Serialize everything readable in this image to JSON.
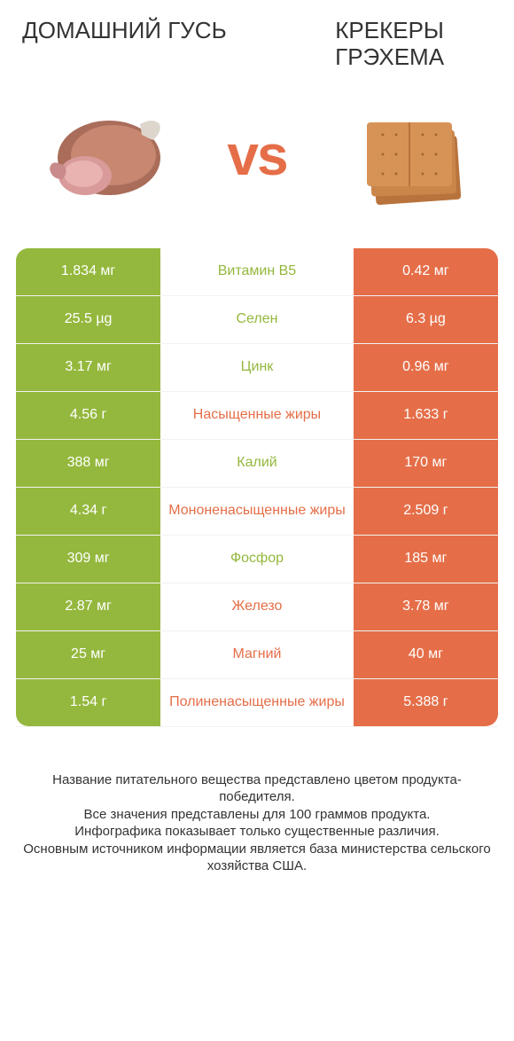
{
  "header": {
    "left_title": "ДОМАШНИЙ ГУСЬ",
    "right_title": "КРЕКЕРЫ ГРЭХЕМА",
    "vs": "vs"
  },
  "colors": {
    "green": "#94b83d",
    "orange": "#e56e48",
    "white": "#ffffff",
    "text": "#333333"
  },
  "rows": [
    {
      "nutrient": "Витамин B5",
      "left": "1.834 мг",
      "right": "0.42 мг",
      "winner": "left"
    },
    {
      "nutrient": "Селен",
      "left": "25.5 µg",
      "right": "6.3 µg",
      "winner": "left"
    },
    {
      "nutrient": "Цинк",
      "left": "3.17 мг",
      "right": "0.96 мг",
      "winner": "left"
    },
    {
      "nutrient": "Насыщенные жиры",
      "left": "4.56 г",
      "right": "1.633 г",
      "winner": "right"
    },
    {
      "nutrient": "Калий",
      "left": "388 мг",
      "right": "170 мг",
      "winner": "left"
    },
    {
      "nutrient": "Мононенасыщенные жиры",
      "left": "4.34 г",
      "right": "2.509 г",
      "winner": "right"
    },
    {
      "nutrient": "Фосфор",
      "left": "309 мг",
      "right": "185 мг",
      "winner": "left"
    },
    {
      "nutrient": "Железо",
      "left": "2.87 мг",
      "right": "3.78 мг",
      "winner": "right"
    },
    {
      "nutrient": "Магний",
      "left": "25 мг",
      "right": "40 мг",
      "winner": "right"
    },
    {
      "nutrient": "Полиненасыщенные жиры",
      "left": "1.54 г",
      "right": "5.388 г",
      "winner": "right"
    }
  ],
  "footer": {
    "line1": "Название питательного вещества представлено цветом продукта-победителя.",
    "line2": "Все значения представлены для 100 граммов продукта.",
    "line3": "Инфографика показывает только существенные различия.",
    "line4": "Основным источником информации является база министерства сельского хозяйства США."
  }
}
